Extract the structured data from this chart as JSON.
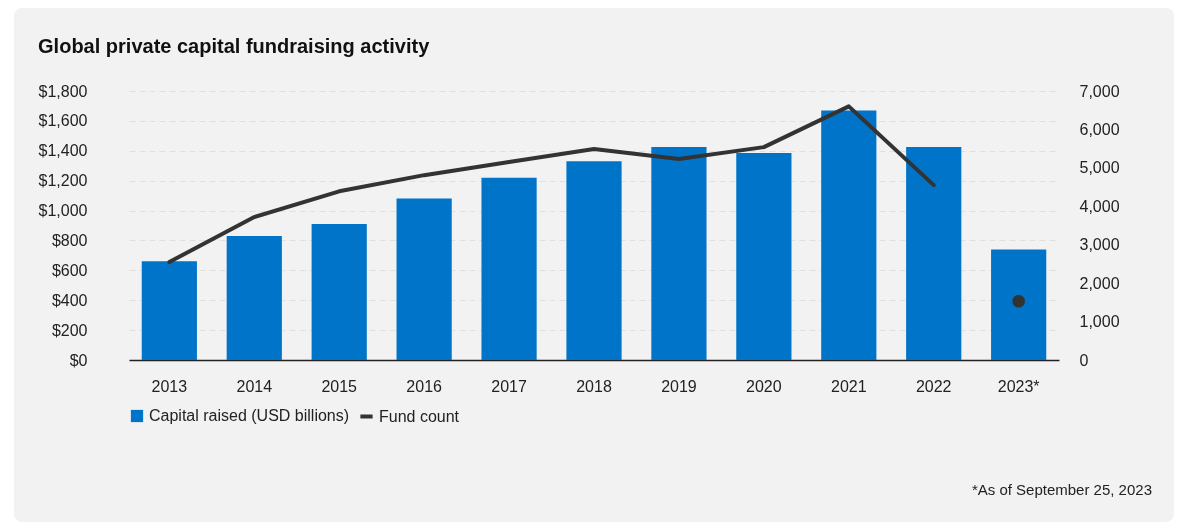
{
  "chart_data": {
    "type": "bar",
    "title": "Global private capital fundraising activity",
    "categories": [
      "2013",
      "2014",
      "2015",
      "2016",
      "2017",
      "2018",
      "2019",
      "2020",
      "2021",
      "2022",
      "2023*"
    ],
    "series": [
      {
        "name": "Capital raised (USD billions)",
        "color": "#0074c8",
        "values": [
          660,
          830,
          910,
          1080,
          1220,
          1330,
          1425,
          1385,
          1670,
          1425,
          740
        ]
      },
      {
        "name": "Fund count",
        "type": "line",
        "axis": "y2",
        "color": "#333333",
        "values": [
          2550,
          3720,
          4390,
          4810,
          5150,
          5490,
          5230,
          5540,
          6600,
          4550,
          null
        ]
      },
      {
        "type": "scatter",
        "axis": "y2",
        "color": "#333333",
        "marker": "circle",
        "values": [
          null,
          null,
          null,
          null,
          null,
          null,
          null,
          null,
          null,
          null,
          1530
        ]
      }
    ],
    "ylim": [
      0,
      1800
    ],
    "yticks": [
      {
        "value": 0,
        "label": "$0"
      },
      {
        "value": 200,
        "label": "$200"
      },
      {
        "value": 400,
        "label": "$400"
      },
      {
        "value": 600,
        "label": "$600"
      },
      {
        "value": 800,
        "label": "$800"
      },
      {
        "value": 1000,
        "label": "$1,000"
      },
      {
        "value": 1200,
        "label": "$1,200"
      },
      {
        "value": 1400,
        "label": "$1,400"
      },
      {
        "value": 1600,
        "label": "$1,600"
      },
      {
        "value": 1800,
        "label": "$1,800"
      }
    ],
    "y2lim": [
      0,
      7000
    ],
    "y2ticks": [
      0,
      {
        "value": 1000,
        "label": "1,000"
      },
      {
        "value": 2000,
        "label": "2,000"
      },
      {
        "value": 3000,
        "label": "3,000"
      },
      {
        "value": 4000,
        "label": "4,000"
      },
      {
        "value": 5000,
        "label": "5,000"
      },
      {
        "value": 6000,
        "label": "6,000"
      },
      {
        "value": 7000,
        "label": "7,000"
      }
    ],
    "grid": "y",
    "legend": "bottom",
    "annotations": [
      "*As of September 25, 2023"
    ]
  }
}
